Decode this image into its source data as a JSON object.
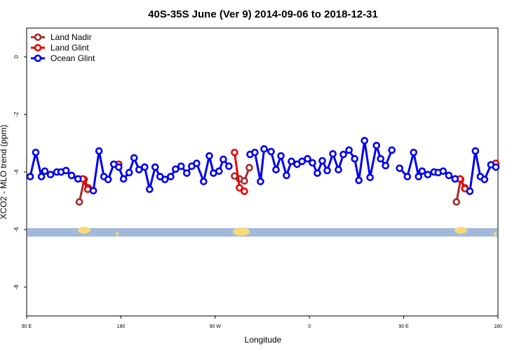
{
  "chart_data": {
    "type": "line",
    "title": "40S-35S June (Ver 9)   2014-09-06 to 2018-12-31",
    "x_label": "Longitude",
    "y_label": "XCO2 - MLO trend (ppm)",
    "xlim": [
      90,
      540
    ],
    "ylim": [
      -9,
      1
    ],
    "xticks": [
      {
        "value": 90,
        "label": "90 E"
      },
      180,
      {
        "value": 270,
        "label": "90 W"
      },
      {
        "value": 360,
        "label": "0"
      },
      {
        "value": 450,
        "label": "90 E"
      },
      {
        "value": 540,
        "label": "180"
      }
    ],
    "yticks": [
      0,
      -2,
      -4,
      -6,
      -8
    ],
    "legend": "top-left",
    "series": [
      {
        "name": "Land Nadir",
        "color": "#a52a2a",
        "x": [
          140.3,
          145,
          149,
          null,
          288.5,
          293.2,
          297.9,
          302.6,
          null,
          500.4,
          504.4,
          508.5
        ],
        "values": [
          -5.04,
          -4.26,
          -4.55,
          null,
          -4.14,
          -4.24,
          -4.31,
          -3.85,
          null,
          -5.04,
          -4.26,
          -4.55
        ]
      },
      {
        "name": "Land Glint",
        "color": "#ee0000",
        "x": [
          143.6,
          148.3,
          null,
          177.9,
          null,
          288.5,
          293.2,
          297.9,
          null,
          503.8,
          508.5,
          null,
          538
        ],
        "values": [
          -4.24,
          -4.6,
          null,
          -3.73,
          null,
          -3.32,
          -4.55,
          -4.67,
          null,
          -4.24,
          -4.58,
          null,
          -3.7
        ]
      },
      {
        "name": "Ocean Glint",
        "color": "#0000ee",
        "x": [
          93.4,
          98.7,
          104.1,
          107.4,
          112.8,
          118.8,
          122.9,
          127.6,
          132.9,
          139.0,
          null,
          153.7,
          159.1,
          163.8,
          167.8,
          173.2,
          177.9,
          182.5,
          187.9,
          192.6,
          197.3,
          202.7,
          207.4,
          212.7,
          217.4,
          222.1,
          227.5,
          232.2,
          237.5,
          242.9,
          247.6,
          252.3,
          259.0,
          264.4,
          268.4,
          273.7,
          277.8,
          283.1,
          null,
          303.3,
          307.9,
          313.3,
          316.7,
          323.4,
          328.1,
          332.8,
          338.1,
          342.8,
          348.2,
          352.9,
          358.2,
          362.9,
          367.6,
          372.3,
          377.0,
          382.4,
          387.7,
          392.4,
          397.8,
          403.2,
          407.2,
          412.6,
          417.9,
          424.0,
          428.0,
          432.7,
          438.7,
          null,
          446.1,
          453.5,
          459.5,
          464.2,
          467.6,
          473.0,
          479.0,
          483.0,
          487.7,
          493.1,
          499.1,
          null,
          513.2,
          518.5,
          523.2,
          527.2,
          533.3,
          538.0
        ],
        "values": [
          -4.16,
          -3.32,
          -4.16,
          -3.97,
          -4.09,
          -4.0,
          -4.0,
          -3.95,
          -4.12,
          -4.24,
          null,
          -4.65,
          -3.27,
          -4.16,
          -4.26,
          -3.73,
          -3.83,
          -4.24,
          -4.02,
          -3.51,
          -3.92,
          -3.83,
          -4.6,
          -3.83,
          -4.16,
          -4.26,
          -4.16,
          -3.9,
          -3.8,
          -4.04,
          -3.8,
          -3.7,
          -4.33,
          -3.44,
          -4.04,
          -3.97,
          -3.56,
          -3.8,
          null,
          -3.39,
          -3.32,
          -4.33,
          -3.2,
          -3.29,
          -3.92,
          -3.44,
          -4.12,
          -3.63,
          -3.73,
          -3.63,
          -3.54,
          -3.68,
          -4.04,
          -3.61,
          -3.95,
          -3.37,
          -3.92,
          -3.39,
          -3.24,
          -3.54,
          -4.29,
          -2.91,
          -4.19,
          -3.08,
          -3.54,
          -3.78,
          -3.24,
          null,
          -3.87,
          -4.16,
          -3.32,
          -4.16,
          -3.97,
          -4.09,
          -4.0,
          -4.02,
          -3.97,
          -4.12,
          -4.24,
          null,
          -4.67,
          -3.27,
          -4.16,
          -4.26,
          -3.75,
          -3.83
        ]
      }
    ]
  }
}
